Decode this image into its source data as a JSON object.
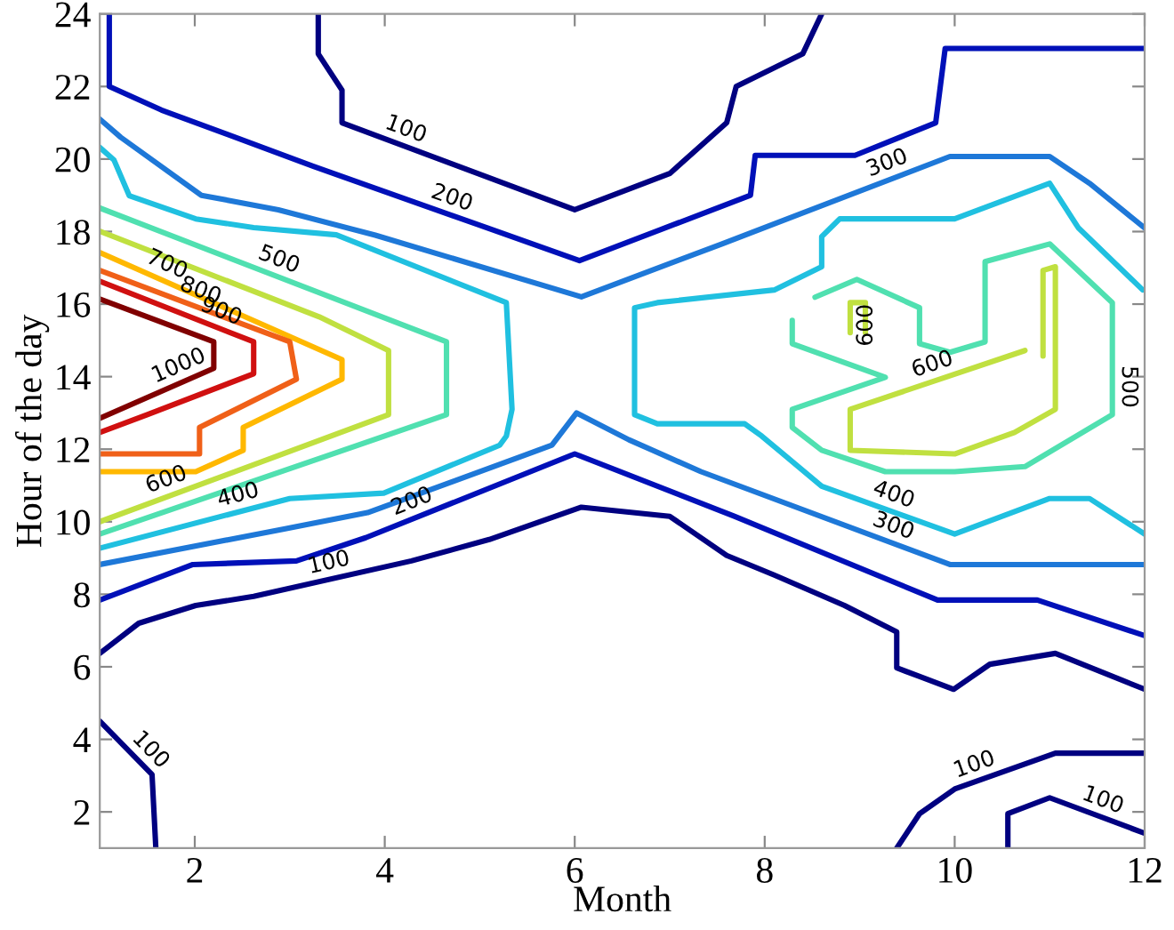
{
  "chart_data": {
    "type": "line",
    "xlabel": "Month",
    "ylabel": "Hour of the day",
    "xlim": [
      1,
      12
    ],
    "xticks": [
      2,
      4,
      6,
      8,
      10,
      12
    ],
    "ylim": [
      1,
      24
    ],
    "yticks": [
      2,
      4,
      6,
      8,
      10,
      12,
      14,
      16,
      18,
      20,
      22,
      24
    ],
    "grid": false,
    "legend": false,
    "line_style": "solid",
    "marker": "none",
    "series": [
      {
        "name": "100",
        "color": "#000080",
        "x": [
          3.3,
          3.3,
          3.55,
          3.55,
          6.0,
          7.0,
          7.6,
          7.7,
          8.4,
          8.6
        ],
        "values": [
          24,
          22.9,
          21.9,
          21.0,
          18.6,
          19.6,
          21.0,
          22.0,
          22.9,
          24
        ]
      },
      {
        "name": "200",
        "color": "#0010b8",
        "x": [
          1.1,
          1.1,
          1.65,
          3.25,
          6.05,
          7.85,
          7.9,
          8.95,
          9.8,
          9.9,
          12
        ],
        "values": [
          24,
          22.0,
          21.35,
          19.8,
          17.2,
          19.0,
          20.1,
          20.1,
          21.0,
          23.05,
          23.05
        ]
      },
      {
        "name": "300",
        "color": "#1e78d8",
        "x": [
          1,
          1.22,
          2.07,
          2.88,
          3.9,
          6.07,
          7.55,
          9.95,
          11.0,
          11.42,
          12
        ],
        "values": [
          21.1,
          20.6,
          19.0,
          18.6,
          17.9,
          16.2,
          17.66,
          20.07,
          20.07,
          19.33,
          18.1
        ]
      },
      {
        "name": "400",
        "color": "#20c0e0",
        "x": [
          1,
          1.15,
          1.31,
          2.01,
          2.62,
          3.49,
          5.28,
          5.34,
          5.28,
          5.21,
          3.99,
          3.0,
          1
        ],
        "values": [
          20.32,
          19.97,
          18.99,
          18.35,
          18.11,
          17.91,
          16.04,
          13.1,
          12.36,
          12.11,
          10.79,
          10.64,
          9.27
        ]
      },
      {
        "name": "500",
        "color": "#50e0b0",
        "x": [
          1,
          4.65,
          4.65,
          1
        ],
        "values": [
          18.65,
          14.96,
          12.95,
          9.66
        ]
      },
      {
        "name": "600",
        "color": "#c0e040",
        "x": [
          1,
          3.31,
          4.04,
          4.04,
          1
        ],
        "values": [
          18.01,
          15.65,
          14.72,
          12.95,
          10.0
        ]
      },
      {
        "name": "700",
        "color": "#ffb800",
        "x": [
          1,
          3.55,
          3.55,
          2.51,
          2.51,
          2.01,
          1
        ],
        "values": [
          17.42,
          14.47,
          13.93,
          12.6,
          11.97,
          11.38,
          11.38
        ]
      },
      {
        "name": "800",
        "color": "#f06018",
        "x": [
          1,
          3.0,
          3.07,
          2.05,
          2.05,
          1
        ],
        "values": [
          16.93,
          14.96,
          13.93,
          12.6,
          11.87,
          11.87
        ]
      },
      {
        "name": "900",
        "color": "#d01010",
        "x": [
          1,
          2.62,
          2.62,
          1.5,
          1
        ],
        "values": [
          16.63,
          14.96,
          14.08,
          12.95,
          12.46
        ]
      },
      {
        "name": "1000",
        "color": "#800000",
        "x": [
          1,
          2.2,
          2.2,
          1
        ],
        "values": [
          16.14,
          14.96,
          14.23,
          12.85
        ]
      },
      {
        "name": "400",
        "color": "#20c0e0",
        "x": [
          11.98,
          11.3,
          11.0,
          10.0,
          8.79,
          8.6,
          8.6,
          8.1,
          6.87,
          6.63,
          6.63,
          6.87,
          7.79,
          7.97,
          8.6,
          10.0,
          11.0,
          11.42,
          12
        ],
        "values": [
          16.39,
          18.11,
          19.33,
          18.35,
          18.35,
          17.86,
          17.03,
          16.39,
          16.04,
          15.9,
          12.95,
          12.7,
          12.7,
          12.36,
          10.98,
          9.66,
          10.64,
          10.64,
          9.66
        ]
      },
      {
        "name": "500",
        "color": "#50e0b0",
        "x": [
          8.53,
          8.97,
          9.63,
          9.63,
          9.95,
          10.32,
          10.32,
          11.0,
          11.66,
          11.66,
          10.74,
          10.0,
          9.27,
          8.6,
          8.29,
          8.29,
          9.27,
          8.29,
          8.29
        ],
        "values": [
          16.19,
          16.68,
          15.9,
          14.91,
          14.67,
          14.96,
          17.17,
          17.66,
          16.04,
          12.95,
          11.52,
          11.38,
          11.38,
          11.97,
          12.6,
          13.1,
          13.98,
          14.91,
          15.55
        ]
      },
      {
        "name": "600",
        "color": "#c0e040",
        "x": [
          8.9,
          8.9,
          9.06,
          9.06
        ],
        "values": [
          15.21,
          16.04,
          16.04,
          15.21
        ]
      },
      {
        "name": "600",
        "color": "#c0e040",
        "x": [
          10.93,
          10.93,
          11.06,
          11.06,
          10.63,
          10.0,
          8.9,
          8.9,
          10.74
        ],
        "values": [
          14.57,
          16.93,
          17.03,
          13.1,
          12.46,
          11.87,
          11.97,
          13.1,
          14.72
        ]
      },
      {
        "name": "300",
        "color": "#1e78d8",
        "x": [
          1,
          2.94,
          3.82,
          5.76,
          6.02,
          6.57,
          7.33,
          9.95,
          12
        ],
        "values": [
          8.82,
          9.8,
          10.25,
          12.11,
          13.0,
          12.26,
          11.38,
          8.82,
          8.82
        ]
      },
      {
        "name": "200",
        "color": "#0010b8",
        "x": [
          1,
          1.98,
          3.07,
          3.8,
          6.0,
          7.68,
          9.82,
          10.87,
          12
        ],
        "values": [
          7.84,
          8.82,
          8.92,
          9.56,
          11.87,
          10.15,
          7.84,
          7.84,
          6.86
        ]
      },
      {
        "name": "100",
        "color": "#000080",
        "x": [
          1,
          1.41,
          2.01,
          2.62,
          4.28,
          5.1,
          6.07,
          7.0,
          7.6,
          8.1,
          8.84,
          9.39,
          9.39,
          9.99,
          10.37,
          11.06,
          12
        ],
        "values": [
          6.37,
          7.2,
          7.69,
          7.94,
          8.92,
          9.51,
          10.4,
          10.15,
          9.07,
          8.53,
          7.69,
          6.96,
          5.97,
          5.38,
          6.07,
          6.37,
          5.38
        ]
      },
      {
        "name": "100",
        "color": "#000080",
        "x": [
          1,
          1.55,
          1.59
        ],
        "values": [
          4.5,
          3.03,
          1
        ]
      },
      {
        "name": "100",
        "color": "#000080",
        "x": [
          9.39,
          9.63,
          10.0,
          11.06,
          12
        ],
        "values": [
          1,
          1.95,
          2.63,
          3.62,
          3.62
        ]
      },
      {
        "name": "100",
        "color": "#000080",
        "x": [
          10.56,
          10.56,
          11.0,
          12
        ],
        "values": [
          1,
          1.95,
          2.39,
          1.41
        ]
      }
    ]
  }
}
